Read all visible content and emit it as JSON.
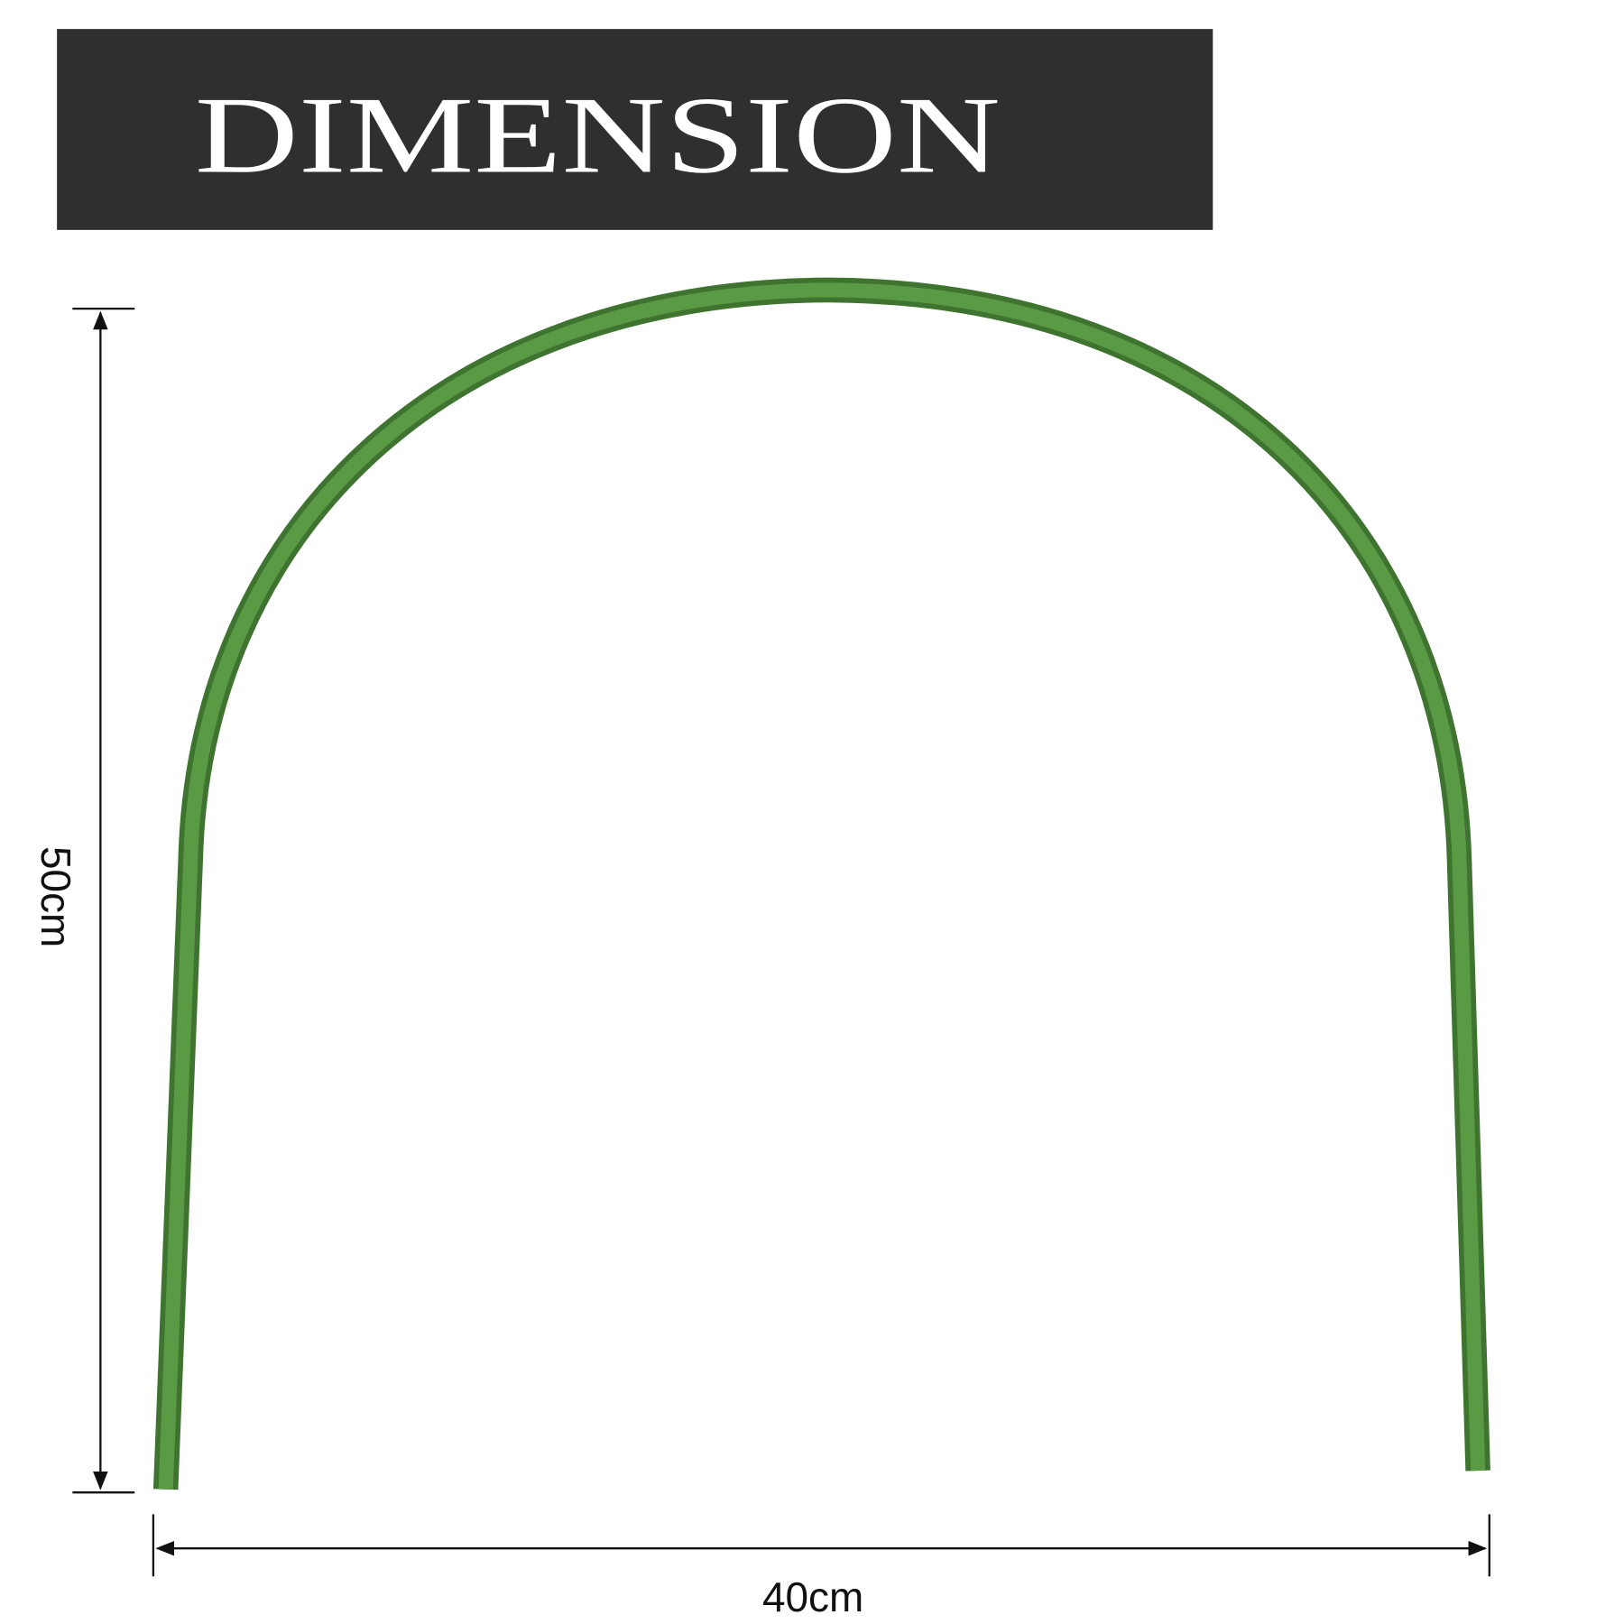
{
  "banner": {
    "title": "DIMENSION",
    "background": "#2f2f2f",
    "text_color": "#ffffff"
  },
  "product": {
    "name_icon": "garden-hoop-arch",
    "color": "#4f8a3a"
  },
  "dimensions": {
    "height_label": "50cm",
    "width_label": "40cm"
  }
}
